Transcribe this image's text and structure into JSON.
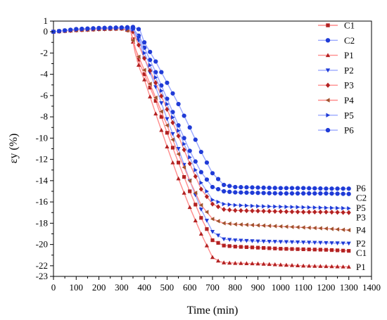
{
  "chart_data": {
    "type": "line",
    "title": "",
    "xlabel": "Time (min)",
    "ylabel": "εy (%)",
    "xlim": [
      0,
      1400
    ],
    "ylim": [
      -23,
      1
    ],
    "xticks": [
      0,
      100,
      200,
      300,
      400,
      500,
      600,
      700,
      800,
      900,
      1000,
      1100,
      1200,
      1300,
      1400
    ],
    "yticks": [
      1,
      0,
      -2,
      -4,
      -6,
      -8,
      -10,
      -12,
      -14,
      -16,
      -18,
      -20,
      -22,
      -23
    ],
    "grid": false,
    "legend": "top-right",
    "series": [
      {
        "name": "C1",
        "color": "#b22222",
        "marker": "square",
        "line": "#ff8c8c",
        "x": [
          0,
          100,
          200,
          300,
          340,
          360,
          380,
          400,
          450,
          500,
          550,
          600,
          650,
          700,
          750,
          800,
          900,
          1000,
          1100,
          1200,
          1300
        ],
        "y": [
          0,
          0.15,
          0.25,
          0.3,
          0.1,
          -1.5,
          -3.0,
          -4.0,
          -6.5,
          -9.5,
          -12.3,
          -15.0,
          -17.5,
          -19.6,
          -20.1,
          -20.2,
          -20.3,
          -20.4,
          -20.45,
          -20.5,
          -20.6
        ]
      },
      {
        "name": "C2",
        "color": "#1f3bd6",
        "marker": "circle",
        "line": "#9aa8ff",
        "x": [
          0,
          100,
          200,
          300,
          350,
          380,
          400,
          450,
          500,
          550,
          600,
          650,
          700,
          750,
          800,
          900,
          1000,
          1100,
          1200,
          1300
        ],
        "y": [
          0,
          0.2,
          0.3,
          0.35,
          0.3,
          -0.5,
          -1.5,
          -3.8,
          -6.3,
          -8.8,
          -11.2,
          -13.2,
          -14.6,
          -15.0,
          -15.1,
          -15.15,
          -15.2,
          -15.2,
          -15.2,
          -15.25
        ]
      },
      {
        "name": "P1",
        "color": "#b22222",
        "marker": "triangle-up",
        "line": "#ff8c8c",
        "x": [
          0,
          100,
          200,
          300,
          340,
          360,
          380,
          400,
          450,
          500,
          550,
          600,
          650,
          700,
          730,
          750,
          800,
          900,
          1000,
          1100,
          1200,
          1300
        ],
        "y": [
          0,
          0.15,
          0.25,
          0.3,
          0.1,
          -2.0,
          -3.5,
          -4.5,
          -7.7,
          -10.8,
          -13.8,
          -16.5,
          -19.0,
          -21.2,
          -21.6,
          -21.7,
          -21.75,
          -21.8,
          -21.9,
          -22.0,
          -22.05,
          -22.1
        ]
      },
      {
        "name": "P2",
        "color": "#1f3bd6",
        "marker": "triangle-down",
        "line": "#9aa8ff",
        "x": [
          0,
          100,
          200,
          300,
          350,
          380,
          400,
          450,
          500,
          550,
          600,
          650,
          700,
          750,
          800,
          900,
          1000,
          1100,
          1200,
          1300
        ],
        "y": [
          0,
          0.15,
          0.25,
          0.3,
          0.1,
          -1.0,
          -2.5,
          -5.2,
          -8.2,
          -11.0,
          -14.0,
          -16.7,
          -18.8,
          -19.5,
          -19.6,
          -19.7,
          -19.75,
          -19.8,
          -19.85,
          -19.9
        ]
      },
      {
        "name": "P3",
        "color": "#b22222",
        "marker": "diamond",
        "line": "#ff8c8c",
        "x": [
          0,
          100,
          200,
          300,
          350,
          380,
          400,
          450,
          500,
          550,
          600,
          650,
          700,
          750,
          800,
          900,
          1000,
          1100,
          1200,
          1300
        ],
        "y": [
          0,
          0.15,
          0.25,
          0.3,
          0.0,
          -1.5,
          -2.5,
          -4.8,
          -7.3,
          -9.8,
          -12.4,
          -14.8,
          -16.2,
          -16.7,
          -16.8,
          -16.85,
          -16.9,
          -16.95,
          -16.95,
          -17.0
        ]
      },
      {
        "name": "P4",
        "color": "#a0522d",
        "marker": "triangle-left",
        "line": "#ff8c8c",
        "x": [
          0,
          100,
          200,
          300,
          340,
          360,
          380,
          400,
          450,
          500,
          550,
          600,
          650,
          700,
          750,
          800,
          900,
          1000,
          1100,
          1200,
          1300
        ],
        "y": [
          0,
          0.15,
          0.25,
          0.3,
          0.0,
          -1.6,
          -2.6,
          -3.6,
          -6.2,
          -8.8,
          -11.5,
          -14.0,
          -16.3,
          -17.6,
          -18.0,
          -18.1,
          -18.2,
          -18.3,
          -18.4,
          -18.5,
          -18.65
        ]
      },
      {
        "name": "P5",
        "color": "#1f3bd6",
        "marker": "triangle-right",
        "line": "#9aa8ff",
        "x": [
          0,
          100,
          200,
          300,
          350,
          380,
          400,
          450,
          500,
          550,
          600,
          650,
          700,
          750,
          800,
          900,
          1000,
          1100,
          1200,
          1300
        ],
        "y": [
          0,
          0.2,
          0.3,
          0.35,
          0.2,
          -0.7,
          -2.0,
          -4.3,
          -6.8,
          -9.3,
          -11.8,
          -14.2,
          -15.8,
          -16.2,
          -16.3,
          -16.4,
          -16.45,
          -16.5,
          -16.55,
          -16.6
        ]
      },
      {
        "name": "P6",
        "color": "#1f3bd6",
        "marker": "circle",
        "line": "#9aa8ff",
        "x": [
          0,
          100,
          200,
          300,
          350,
          380,
          400,
          450,
          500,
          550,
          600,
          650,
          700,
          750,
          800,
          900,
          1000,
          1100,
          1200,
          1300
        ],
        "y": [
          0,
          0.25,
          0.35,
          0.4,
          0.45,
          0.2,
          -1.0,
          -2.8,
          -4.8,
          -6.8,
          -9.0,
          -11.3,
          -13.3,
          -14.4,
          -14.6,
          -14.65,
          -14.7,
          -14.7,
          -14.75,
          -14.75
        ]
      }
    ],
    "end_labels": [
      {
        "text": "P6",
        "y": -14.7
      },
      {
        "text": "C2",
        "y": -15.6
      },
      {
        "text": "P5",
        "y": -16.55
      },
      {
        "text": "P3",
        "y": -17.45
      },
      {
        "text": "P4",
        "y": -18.65
      },
      {
        "text": "P2",
        "y": -19.9
      },
      {
        "text": "C1",
        "y": -20.8
      },
      {
        "text": "P1",
        "y": -22.1
      }
    ]
  }
}
